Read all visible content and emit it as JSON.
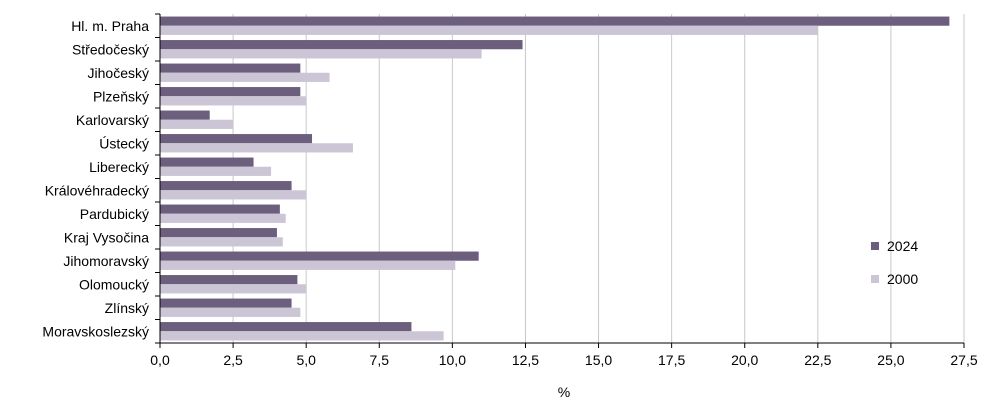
{
  "chart_data": {
    "type": "bar",
    "orientation": "horizontal",
    "categories": [
      "Hl. m. Praha",
      "Středočeský",
      "Jihočeský",
      "Plzeňský",
      "Karlovarský",
      "Ústecký",
      "Liberecký",
      "Královéhradecký",
      "Pardubický",
      "Kraj Vysočina",
      "Jihomoravský",
      "Olomoucký",
      "Zlínský",
      "Moravskoslezský"
    ],
    "series": [
      {
        "name": "2024",
        "color": "#6b5f7d",
        "values": [
          27.0,
          12.4,
          4.8,
          4.8,
          1.7,
          5.2,
          3.2,
          4.5,
          4.1,
          4.0,
          10.9,
          4.7,
          4.5,
          8.6
        ]
      },
      {
        "name": "2000",
        "color": "#ccc5d6",
        "values": [
          22.5,
          11.0,
          5.8,
          5.0,
          2.5,
          6.6,
          3.8,
          5.0,
          4.3,
          4.2,
          10.1,
          5.0,
          4.8,
          9.7
        ]
      }
    ],
    "xlim": [
      0,
      27.5
    ],
    "xticks": [
      "0,0",
      "2,5",
      "5,0",
      "7,5",
      "10,0",
      "12,5",
      "15,0",
      "17,5",
      "20,0",
      "22,5",
      "25,0",
      "27,5"
    ],
    "xlabel": "%",
    "ylabel": "",
    "title": "",
    "grid": true,
    "legend_position": "right"
  }
}
